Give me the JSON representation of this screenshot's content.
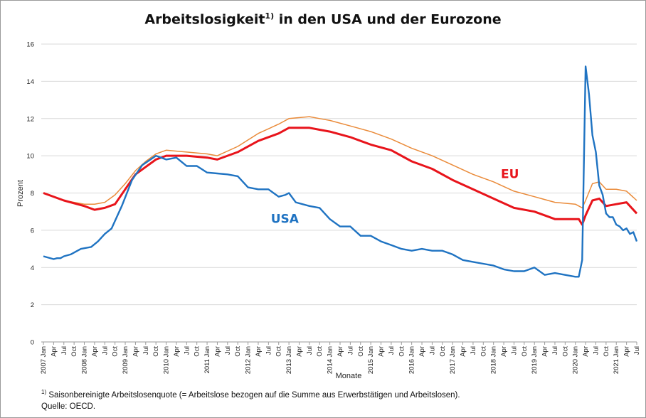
{
  "title_main": "Arbeitslosigkeit",
  "title_sup": "1)",
  "title_rest": " in den USA und der Eurozone",
  "footnote_sup": "1)",
  "footnote_text": " Saisonbereinigte Arbeitslosenquote (= Arbeitslose bezogen auf die Summe aus Erwerbstätigen und Arbeitslosen).",
  "source": "Quelle: OECD.",
  "chart_data": {
    "type": "line",
    "xlabel": "Monate",
    "ylabel": "Prozent",
    "ylim": [
      0,
      16
    ],
    "yticks": [
      0,
      2,
      4,
      6,
      8,
      10,
      12,
      14,
      16
    ],
    "grid": "horizontal",
    "x_start": "2007-01",
    "x_end": "2021-07",
    "x_tick_every_months": 3,
    "month_labels": [
      "Jan",
      "Apr",
      "Jul",
      "Oct"
    ],
    "series": [
      {
        "name": "USA",
        "color": "#1f73c2",
        "width": 2.4,
        "label_at": [
          5.9,
          6.4
        ],
        "points": [
          [
            "2007-01",
            4.6
          ],
          [
            "2007-04",
            4.45
          ],
          [
            "2007-05",
            4.5
          ],
          [
            "2007-06",
            4.5
          ],
          [
            "2007-07",
            4.6
          ],
          [
            "2007-09",
            4.7
          ],
          [
            "2007-12",
            5.0
          ],
          [
            "2008-03",
            5.1
          ],
          [
            "2008-05",
            5.4
          ],
          [
            "2008-07",
            5.8
          ],
          [
            "2008-09",
            6.1
          ],
          [
            "2008-12",
            7.3
          ],
          [
            "2009-03",
            8.7
          ],
          [
            "2009-06",
            9.5
          ],
          [
            "2009-10",
            10.0
          ],
          [
            "2010-01",
            9.8
          ],
          [
            "2010-04",
            9.9
          ],
          [
            "2010-07",
            9.45
          ],
          [
            "2010-10",
            9.45
          ],
          [
            "2011-01",
            9.1
          ],
          [
            "2011-04",
            9.05
          ],
          [
            "2011-07",
            9.0
          ],
          [
            "2011-10",
            8.9
          ],
          [
            "2012-01",
            8.3
          ],
          [
            "2012-04",
            8.2
          ],
          [
            "2012-07",
            8.2
          ],
          [
            "2012-10",
            7.8
          ],
          [
            "2012-12",
            7.9
          ],
          [
            "2013-01",
            8.0
          ],
          [
            "2013-03",
            7.5
          ],
          [
            "2013-07",
            7.3
          ],
          [
            "2013-10",
            7.2
          ],
          [
            "2014-01",
            6.6
          ],
          [
            "2014-04",
            6.2
          ],
          [
            "2014-07",
            6.2
          ],
          [
            "2014-10",
            5.7
          ],
          [
            "2015-01",
            5.7
          ],
          [
            "2015-04",
            5.4
          ],
          [
            "2015-07",
            5.2
          ],
          [
            "2015-10",
            5.0
          ],
          [
            "2016-01",
            4.9
          ],
          [
            "2016-04",
            5.0
          ],
          [
            "2016-07",
            4.9
          ],
          [
            "2016-10",
            4.9
          ],
          [
            "2017-01",
            4.7
          ],
          [
            "2017-04",
            4.4
          ],
          [
            "2017-07",
            4.3
          ],
          [
            "2017-10",
            4.2
          ],
          [
            "2018-01",
            4.1
          ],
          [
            "2018-04",
            3.9
          ],
          [
            "2018-07",
            3.8
          ],
          [
            "2018-10",
            3.8
          ],
          [
            "2019-01",
            4.0
          ],
          [
            "2019-04",
            3.6
          ],
          [
            "2019-07",
            3.7
          ],
          [
            "2019-10",
            3.6
          ],
          [
            "2020-01",
            3.5
          ],
          [
            "2020-02",
            3.5
          ],
          [
            "2020-03",
            4.4
          ],
          [
            "2020-04",
            14.8
          ],
          [
            "2020-05",
            13.3
          ],
          [
            "2020-06",
            11.1
          ],
          [
            "2020-07",
            10.2
          ],
          [
            "2020-08",
            8.4
          ],
          [
            "2020-09",
            7.9
          ],
          [
            "2020-10",
            6.9
          ],
          [
            "2020-11",
            6.7
          ],
          [
            "2020-12",
            6.7
          ],
          [
            "2021-01",
            6.3
          ],
          [
            "2021-02",
            6.2
          ],
          [
            "2021-03",
            6.0
          ],
          [
            "2021-04",
            6.1
          ],
          [
            "2021-05",
            5.8
          ],
          [
            "2021-06",
            5.9
          ],
          [
            "2021-07",
            5.4
          ]
        ]
      },
      {
        "name": "EU",
        "color": "#e8141b",
        "width": 3,
        "label_at": [
          11.4,
          8.8
        ],
        "points": [
          [
            "2007-01",
            8.0
          ],
          [
            "2007-07",
            7.6
          ],
          [
            "2008-01",
            7.3
          ],
          [
            "2008-04",
            7.1
          ],
          [
            "2008-07",
            7.2
          ],
          [
            "2008-10",
            7.4
          ],
          [
            "2009-01",
            8.2
          ],
          [
            "2009-04",
            9.0
          ],
          [
            "2009-07",
            9.4
          ],
          [
            "2009-10",
            9.8
          ],
          [
            "2010-01",
            10.0
          ],
          [
            "2010-07",
            10.0
          ],
          [
            "2011-01",
            9.9
          ],
          [
            "2011-04",
            9.8
          ],
          [
            "2011-10",
            10.2
          ],
          [
            "2012-04",
            10.8
          ],
          [
            "2012-10",
            11.2
          ],
          [
            "2013-01",
            11.5
          ],
          [
            "2013-07",
            11.5
          ],
          [
            "2013-10",
            11.4
          ],
          [
            "2014-01",
            11.3
          ],
          [
            "2014-07",
            11.0
          ],
          [
            "2015-01",
            10.6
          ],
          [
            "2015-07",
            10.3
          ],
          [
            "2016-01",
            9.7
          ],
          [
            "2016-07",
            9.3
          ],
          [
            "2017-01",
            8.7
          ],
          [
            "2017-07",
            8.2
          ],
          [
            "2018-01",
            7.7
          ],
          [
            "2018-07",
            7.2
          ],
          [
            "2019-01",
            7.0
          ],
          [
            "2019-07",
            6.6
          ],
          [
            "2020-01",
            6.6
          ],
          [
            "2020-02",
            6.6
          ],
          [
            "2020-03",
            6.3
          ],
          [
            "2020-04",
            6.8
          ],
          [
            "2020-06",
            7.6
          ],
          [
            "2020-08",
            7.7
          ],
          [
            "2020-10",
            7.3
          ],
          [
            "2021-01",
            7.4
          ],
          [
            "2021-04",
            7.5
          ],
          [
            "2021-07",
            6.9
          ]
        ]
      },
      {
        "name": "Eurozone",
        "color": "#ea8b3a",
        "width": 1.5,
        "label_at": [
          16.0,
          10.7
        ],
        "points": [
          [
            "2007-01",
            8.0
          ],
          [
            "2007-07",
            7.6
          ],
          [
            "2008-01",
            7.4
          ],
          [
            "2008-04",
            7.4
          ],
          [
            "2008-07",
            7.5
          ],
          [
            "2008-10",
            7.9
          ],
          [
            "2009-01",
            8.5
          ],
          [
            "2009-04",
            9.2
          ],
          [
            "2009-07",
            9.7
          ],
          [
            "2009-10",
            10.1
          ],
          [
            "2010-01",
            10.3
          ],
          [
            "2010-07",
            10.2
          ],
          [
            "2011-01",
            10.1
          ],
          [
            "2011-04",
            10.0
          ],
          [
            "2011-10",
            10.5
          ],
          [
            "2012-04",
            11.2
          ],
          [
            "2012-10",
            11.7
          ],
          [
            "2013-01",
            12.0
          ],
          [
            "2013-07",
            12.1
          ],
          [
            "2013-10",
            12.0
          ],
          [
            "2014-01",
            11.9
          ],
          [
            "2014-07",
            11.6
          ],
          [
            "2015-01",
            11.3
          ],
          [
            "2015-07",
            10.9
          ],
          [
            "2016-01",
            10.4
          ],
          [
            "2016-07",
            10.0
          ],
          [
            "2017-01",
            9.5
          ],
          [
            "2017-07",
            9.0
          ],
          [
            "2018-01",
            8.6
          ],
          [
            "2018-07",
            8.1
          ],
          [
            "2019-01",
            7.8
          ],
          [
            "2019-07",
            7.5
          ],
          [
            "2020-01",
            7.4
          ],
          [
            "2020-02",
            7.3
          ],
          [
            "2020-03",
            7.2
          ],
          [
            "2020-04",
            7.6
          ],
          [
            "2020-06",
            8.5
          ],
          [
            "2020-08",
            8.6
          ],
          [
            "2020-10",
            8.2
          ],
          [
            "2021-01",
            8.2
          ],
          [
            "2021-04",
            8.1
          ],
          [
            "2021-07",
            7.6
          ]
        ]
      }
    ]
  }
}
